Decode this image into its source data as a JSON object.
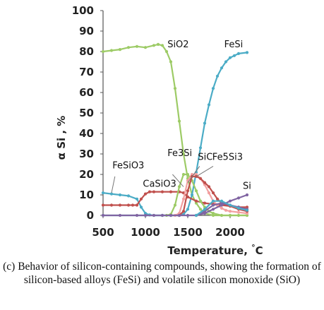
{
  "caption": "(c) Behavior of silicon-containing compounds, showing the formation of silicon-based alloys (FeSi) and volatile silicon monoxide (SiO)",
  "chart_data": {
    "type": "line",
    "title": "",
    "xlabel": "Temperature, °C",
    "ylabel": "α Si , %",
    "xlim": [
      500,
      2200
    ],
    "ylim": [
      0,
      100
    ],
    "xticks": [
      500,
      1000,
      1500,
      2000
    ],
    "yticks": [
      0,
      10,
      20,
      30,
      40,
      50,
      60,
      70,
      80,
      90,
      100
    ],
    "grid": false,
    "legend": "none",
    "series": [
      {
        "name": "SiO2",
        "color": "#9dcb66",
        "points": [
          [
            500,
            80
          ],
          [
            600,
            80.5
          ],
          [
            700,
            81
          ],
          [
            800,
            82
          ],
          [
            900,
            82.5
          ],
          [
            1000,
            82
          ],
          [
            1100,
            83
          ],
          [
            1150,
            83.5
          ],
          [
            1200,
            83
          ],
          [
            1250,
            80
          ],
          [
            1300,
            75
          ],
          [
            1350,
            62
          ],
          [
            1400,
            46
          ],
          [
            1450,
            30
          ],
          [
            1500,
            18
          ],
          [
            1550,
            10
          ],
          [
            1600,
            6
          ],
          [
            1650,
            3
          ],
          [
            1700,
            1
          ],
          [
            1800,
            0
          ],
          [
            1900,
            0
          ],
          [
            2000,
            0
          ],
          [
            2100,
            0
          ],
          [
            2200,
            0
          ]
        ]
      },
      {
        "name": "FeSi",
        "color": "#4bacc6",
        "points": [
          [
            500,
            0
          ],
          [
            1000,
            0
          ],
          [
            1200,
            0
          ],
          [
            1300,
            0
          ],
          [
            1400,
            0
          ],
          [
            1450,
            0.5
          ],
          [
            1500,
            3
          ],
          [
            1550,
            10
          ],
          [
            1600,
            21
          ],
          [
            1650,
            33
          ],
          [
            1700,
            45
          ],
          [
            1750,
            54
          ],
          [
            1800,
            62
          ],
          [
            1850,
            68
          ],
          [
            1900,
            72
          ],
          [
            1950,
            75
          ],
          [
            2000,
            77
          ],
          [
            2050,
            78
          ],
          [
            2100,
            79
          ],
          [
            2200,
            79.5
          ]
        ]
      },
      {
        "name": "FeSiO3",
        "color": "#4bacc6",
        "points": [
          [
            500,
            11
          ],
          [
            600,
            10.5
          ],
          [
            700,
            10
          ],
          [
            800,
            9.5
          ],
          [
            900,
            8
          ],
          [
            950,
            4
          ],
          [
            1000,
            1
          ],
          [
            1050,
            0.2
          ],
          [
            1100,
            0
          ],
          [
            1200,
            0
          ],
          [
            1300,
            0
          ],
          [
            1400,
            0
          ]
        ]
      },
      {
        "name": "CaSiO3",
        "color": "#c0504d",
        "points": [
          [
            500,
            5
          ],
          [
            600,
            5
          ],
          [
            700,
            5
          ],
          [
            800,
            5
          ],
          [
            850,
            5
          ],
          [
            900,
            5
          ],
          [
            950,
            8
          ],
          [
            1000,
            10.5
          ],
          [
            1050,
            11.5
          ],
          [
            1100,
            11.5
          ],
          [
            1200,
            11.5
          ],
          [
            1300,
            11.5
          ],
          [
            1400,
            11.5
          ],
          [
            1450,
            11
          ],
          [
            1500,
            9
          ],
          [
            1600,
            7
          ],
          [
            1700,
            6
          ],
          [
            1800,
            5.5
          ],
          [
            1900,
            5
          ],
          [
            2000,
            4.5
          ],
          [
            2100,
            4
          ],
          [
            2200,
            4
          ]
        ]
      },
      {
        "name": "Fe3Si",
        "color": "#9dcb66",
        "points": [
          [
            1250,
            0
          ],
          [
            1300,
            0.5
          ],
          [
            1350,
            5
          ],
          [
            1400,
            14
          ],
          [
            1450,
            20
          ],
          [
            1500,
            20
          ],
          [
            1550,
            17
          ],
          [
            1600,
            12
          ],
          [
            1650,
            7
          ],
          [
            1700,
            4
          ],
          [
            1750,
            2
          ],
          [
            1800,
            1
          ],
          [
            1900,
            0
          ],
          [
            2000,
            0
          ],
          [
            2200,
            0
          ]
        ]
      },
      {
        "name": "SiC",
        "color": "#f2a0a0",
        "points": [
          [
            1350,
            0
          ],
          [
            1400,
            1
          ],
          [
            1450,
            8
          ],
          [
            1500,
            17
          ],
          [
            1550,
            20
          ],
          [
            1600,
            20
          ],
          [
            1650,
            18
          ],
          [
            1700,
            15
          ],
          [
            1750,
            11
          ],
          [
            1800,
            7
          ],
          [
            1850,
            5
          ],
          [
            1900,
            3.5
          ],
          [
            1950,
            2.5
          ],
          [
            2000,
            2
          ],
          [
            2100,
            1.5
          ],
          [
            2200,
            1
          ]
        ]
      },
      {
        "name": "Fe5Si3",
        "color": "#c0504d",
        "points": [
          [
            1400,
            0
          ],
          [
            1450,
            2
          ],
          [
            1500,
            12
          ],
          [
            1550,
            19
          ],
          [
            1600,
            19
          ],
          [
            1650,
            18
          ],
          [
            1700,
            16
          ],
          [
            1750,
            14
          ],
          [
            1800,
            11
          ],
          [
            1850,
            8
          ],
          [
            1900,
            6
          ],
          [
            2000,
            4.5
          ],
          [
            2100,
            3
          ],
          [
            2200,
            2
          ]
        ]
      },
      {
        "name": "Si",
        "color": "#8064a2",
        "points": [
          [
            500,
            0
          ],
          [
            700,
            0
          ],
          [
            900,
            0
          ],
          [
            1000,
            0
          ],
          [
            1100,
            0
          ],
          [
            1200,
            0
          ],
          [
            1300,
            0
          ],
          [
            1400,
            0
          ],
          [
            1500,
            0
          ],
          [
            1600,
            0
          ],
          [
            1700,
            1
          ],
          [
            1800,
            3
          ],
          [
            1900,
            5
          ],
          [
            2000,
            7
          ],
          [
            2100,
            8.5
          ],
          [
            2200,
            10
          ]
        ]
      },
      {
        "name": "",
        "color": "#8064a2",
        "points": [
          [
            1600,
            0
          ],
          [
            1700,
            2
          ],
          [
            1800,
            5
          ],
          [
            1900,
            6
          ],
          [
            2000,
            5
          ],
          [
            2100,
            4
          ],
          [
            2200,
            3
          ]
        ]
      },
      {
        "name": "",
        "color": "#4bacc6",
        "points": [
          [
            1600,
            0
          ],
          [
            1700,
            3
          ],
          [
            1800,
            7
          ],
          [
            1900,
            7
          ],
          [
            2000,
            5
          ],
          [
            2100,
            3.5
          ],
          [
            2200,
            2.5
          ]
        ]
      }
    ],
    "annotations": [
      {
        "text": "SiO2",
        "x": 1260,
        "y": 82
      },
      {
        "text": "FeSi",
        "x": 1930,
        "y": 82
      },
      {
        "text": "FeSiO3",
        "x": 610,
        "y": 23
      },
      {
        "text": "CaSiO3",
        "x": 970,
        "y": 14
      },
      {
        "text": "Fe3Si",
        "x": 1260,
        "y": 29
      },
      {
        "text": "SiC",
        "x": 1620,
        "y": 27
      },
      {
        "text": "Fe5Si3",
        "x": 1790,
        "y": 27
      },
      {
        "text": "Si",
        "x": 2150,
        "y": 13
      }
    ]
  }
}
